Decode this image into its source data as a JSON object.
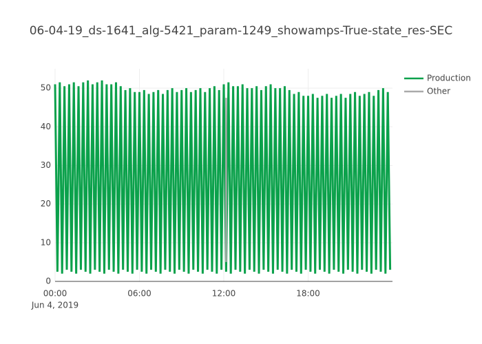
{
  "chart_data": {
    "type": "line",
    "title": "06-04-19_ds-1641_alg-5421_param-1249_showamps-True-state_res-SEC",
    "x_date_label": "Jun 4, 2019",
    "xlim": [
      "2019-06-04T00:00",
      "2019-06-05T00:00"
    ],
    "xticks": [
      {
        "value": "2019-06-04T00:00",
        "label": "00:00"
      },
      {
        "value": "2019-06-04T06:00",
        "label": "06:00"
      },
      {
        "value": "2019-06-04T12:00",
        "label": "12:00"
      },
      {
        "value": "2019-06-04T18:00",
        "label": "18:00"
      }
    ],
    "ylim": [
      0,
      55
    ],
    "yticks": [
      0,
      10,
      20,
      30,
      40,
      50
    ],
    "grid": true,
    "series": [
      {
        "name": "Production",
        "color": "#0ba14b",
        "x": [
          "2019-06-04T00:00",
          "2019-06-04T00:10",
          "2019-06-04T00:20",
          "2019-06-04T00:30",
          "2019-06-04T00:40",
          "2019-06-04T00:50",
          "2019-06-04T01:00",
          "2019-06-04T01:10",
          "2019-06-04T01:20",
          "2019-06-04T01:30",
          "2019-06-04T01:40",
          "2019-06-04T01:50",
          "2019-06-04T02:00",
          "2019-06-04T02:10",
          "2019-06-04T02:20",
          "2019-06-04T02:30",
          "2019-06-04T02:40",
          "2019-06-04T02:50",
          "2019-06-04T03:00",
          "2019-06-04T03:10",
          "2019-06-04T03:20",
          "2019-06-04T03:30",
          "2019-06-04T03:40",
          "2019-06-04T03:50",
          "2019-06-04T04:00",
          "2019-06-04T04:10",
          "2019-06-04T04:20",
          "2019-06-04T04:30",
          "2019-06-04T04:40",
          "2019-06-04T04:50",
          "2019-06-04T05:00",
          "2019-06-04T05:10",
          "2019-06-04T05:20",
          "2019-06-04T05:30",
          "2019-06-04T05:40",
          "2019-06-04T05:50",
          "2019-06-04T06:00",
          "2019-06-04T06:10",
          "2019-06-04T06:20",
          "2019-06-04T06:30",
          "2019-06-04T06:40",
          "2019-06-04T06:50",
          "2019-06-04T07:00",
          "2019-06-04T07:10",
          "2019-06-04T07:20",
          "2019-06-04T07:30",
          "2019-06-04T07:40",
          "2019-06-04T07:50",
          "2019-06-04T08:00",
          "2019-06-04T08:10",
          "2019-06-04T08:20",
          "2019-06-04T08:30",
          "2019-06-04T08:40",
          "2019-06-04T08:50",
          "2019-06-04T09:00",
          "2019-06-04T09:10",
          "2019-06-04T09:20",
          "2019-06-04T09:30",
          "2019-06-04T09:40",
          "2019-06-04T09:50",
          "2019-06-04T10:00",
          "2019-06-04T10:10",
          "2019-06-04T10:20",
          "2019-06-04T10:30",
          "2019-06-04T10:40",
          "2019-06-04T10:50",
          "2019-06-04T11:00",
          "2019-06-04T11:10",
          "2019-06-04T11:20",
          "2019-06-04T11:30",
          "2019-06-04T11:40",
          "2019-06-04T11:50",
          "2019-06-04T12:00",
          "2019-06-04T12:10",
          "2019-06-04T12:20",
          "2019-06-04T12:30",
          "2019-06-04T12:40",
          "2019-06-04T12:50",
          "2019-06-04T13:00",
          "2019-06-04T13:10",
          "2019-06-04T13:20",
          "2019-06-04T13:30",
          "2019-06-04T13:40",
          "2019-06-04T13:50",
          "2019-06-04T14:00",
          "2019-06-04T14:10",
          "2019-06-04T14:20",
          "2019-06-04T14:30",
          "2019-06-04T14:40",
          "2019-06-04T14:50",
          "2019-06-04T15:00",
          "2019-06-04T15:10",
          "2019-06-04T15:20",
          "2019-06-04T15:30",
          "2019-06-04T15:40",
          "2019-06-04T15:50",
          "2019-06-04T16:00",
          "2019-06-04T16:10",
          "2019-06-04T16:20",
          "2019-06-04T16:30",
          "2019-06-04T16:40",
          "2019-06-04T16:50",
          "2019-06-04T17:00",
          "2019-06-04T17:10",
          "2019-06-04T17:20",
          "2019-06-04T17:30",
          "2019-06-04T17:40",
          "2019-06-04T17:50",
          "2019-06-04T18:00",
          "2019-06-04T18:10",
          "2019-06-04T18:20",
          "2019-06-04T18:30",
          "2019-06-04T18:40",
          "2019-06-04T18:50",
          "2019-06-04T19:00",
          "2019-06-04T19:10",
          "2019-06-04T19:20",
          "2019-06-04T19:30",
          "2019-06-04T19:40",
          "2019-06-04T19:50",
          "2019-06-04T20:00",
          "2019-06-04T20:10",
          "2019-06-04T20:20",
          "2019-06-04T20:30",
          "2019-06-04T20:40",
          "2019-06-04T20:50",
          "2019-06-04T21:00",
          "2019-06-04T21:10",
          "2019-06-04T21:20",
          "2019-06-04T21:30",
          "2019-06-04T21:40",
          "2019-06-04T21:50",
          "2019-06-04T22:00",
          "2019-06-04T22:10",
          "2019-06-04T22:20",
          "2019-06-04T22:30",
          "2019-06-04T22:40",
          "2019-06-04T22:50",
          "2019-06-04T23:00",
          "2019-06-04T23:10",
          "2019-06-04T23:20",
          "2019-06-04T23:30",
          "2019-06-04T23:40",
          "2019-06-04T23:50"
        ],
        "values": [
          51,
          2.5,
          51.5,
          2,
          50.5,
          3,
          51,
          2.5,
          51.5,
          2,
          50.5,
          3,
          51.5,
          2.5,
          52,
          2,
          51,
          3,
          51.5,
          2.5,
          52,
          2,
          51,
          3,
          51,
          2.5,
          51.5,
          2,
          50.5,
          3,
          49.5,
          2.5,
          50,
          2,
          49,
          3,
          49,
          2.5,
          49.5,
          2,
          48.5,
          3,
          49,
          2.5,
          49.5,
          2,
          48.5,
          3,
          49.5,
          2.5,
          50,
          2,
          49,
          3,
          49.5,
          2.5,
          50,
          2,
          49,
          3,
          49.5,
          2.5,
          50,
          2,
          49,
          3,
          50,
          2.5,
          50.5,
          2,
          49.5,
          3,
          51,
          2.5,
          51.5,
          2,
          50.5,
          3,
          50.5,
          2.5,
          51,
          2,
          50,
          3,
          50,
          2.5,
          50.5,
          2,
          49.5,
          3,
          50.5,
          2.5,
          51,
          2,
          50,
          3,
          50,
          2.5,
          50.5,
          2,
          49.5,
          3,
          48.5,
          2.5,
          49,
          2,
          48,
          3,
          48,
          2.5,
          48.5,
          2,
          47.5,
          3,
          48,
          2.5,
          48.5,
          2,
          47.5,
          3,
          48,
          2.5,
          48.5,
          2,
          47.5,
          3,
          48.5,
          2.5,
          49,
          2,
          48,
          3,
          48.5,
          2.5,
          49,
          2,
          48,
          3,
          49.5,
          2.5,
          50,
          2,
          49,
          3
        ]
      },
      {
        "name": "Other",
        "color": "#aaaaaa",
        "x": [
          "2019-06-04T12:10",
          "2019-06-04T12:10"
        ],
        "values": [
          5,
          47.5
        ]
      }
    ]
  }
}
